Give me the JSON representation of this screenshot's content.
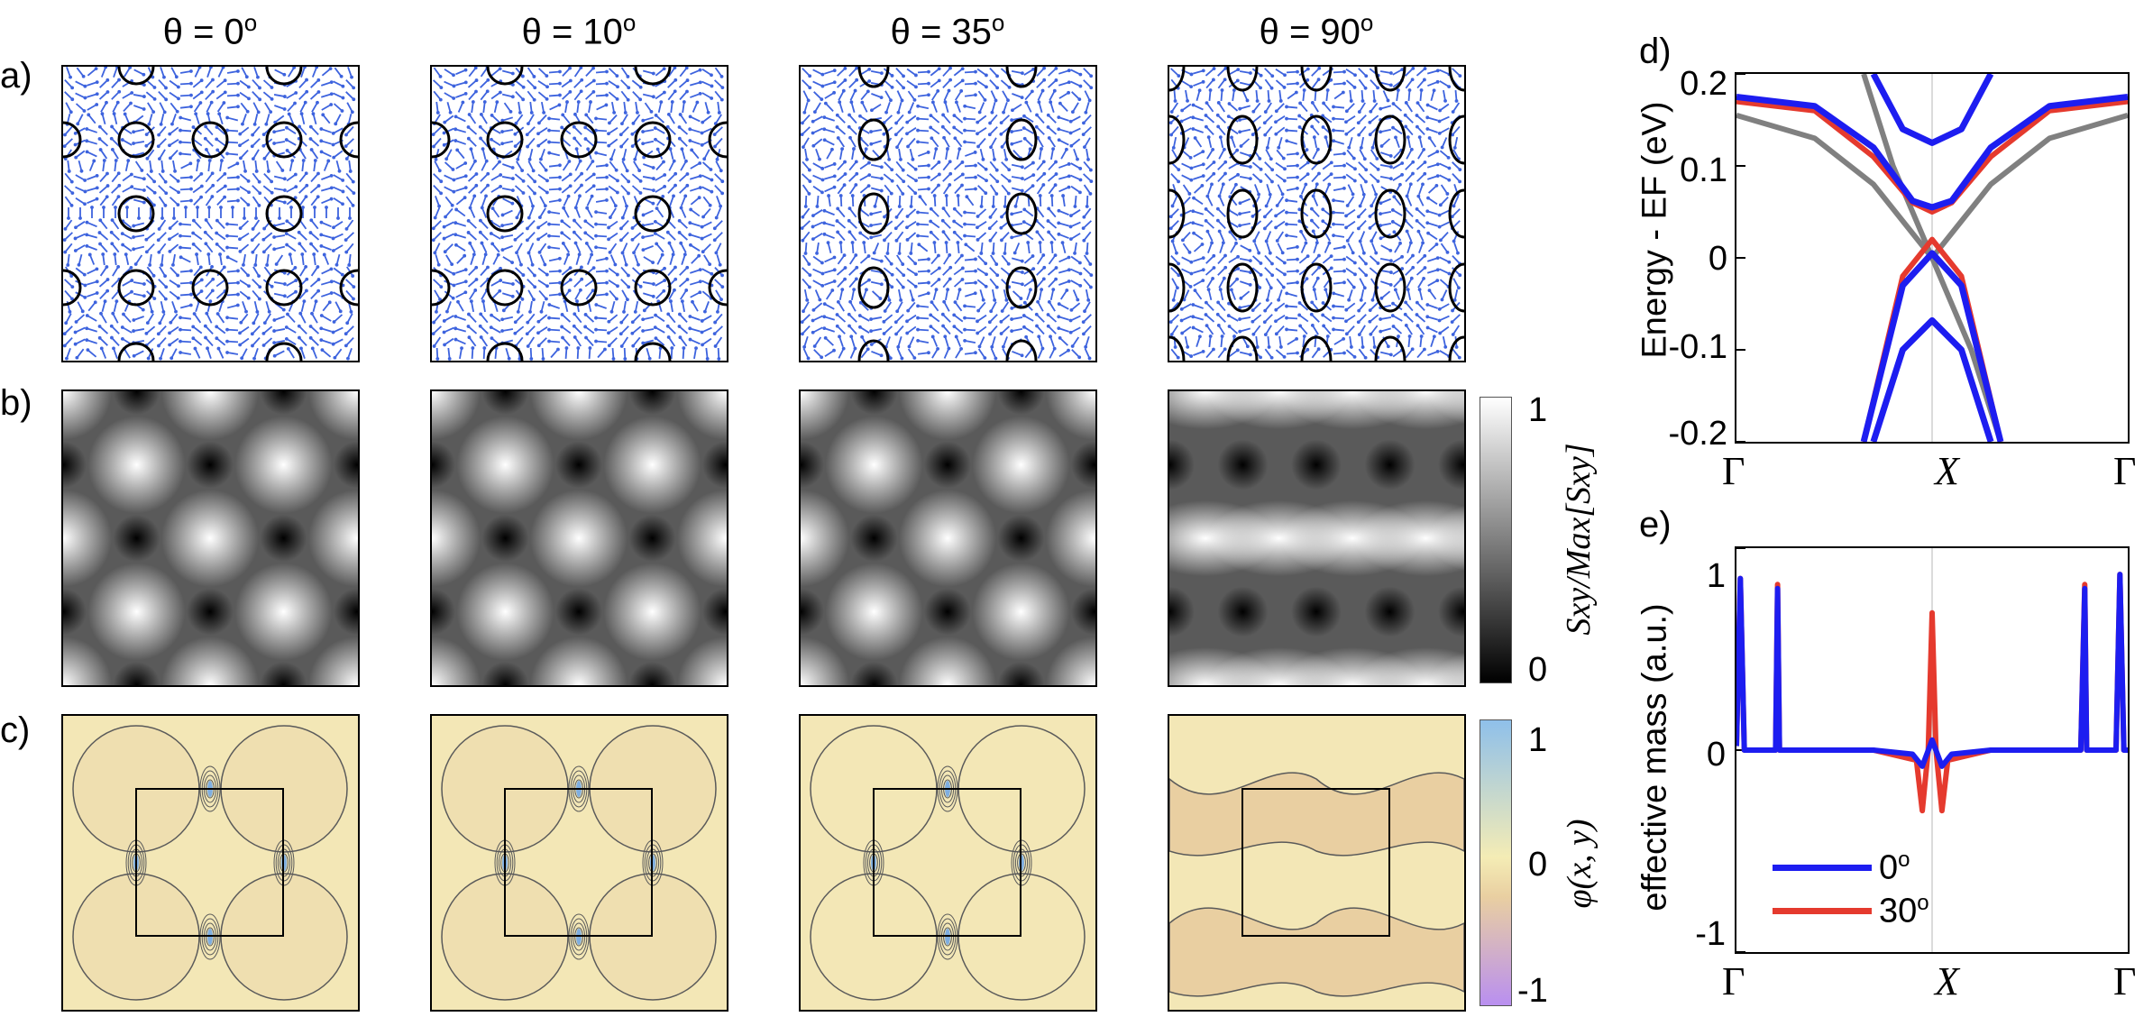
{
  "panel_labels": [
    "a)",
    "b)",
    "c)",
    "d)",
    "e)"
  ],
  "columns": [
    {
      "label": "θ = 0",
      "deg": "o"
    },
    {
      "label": "θ = 10",
      "deg": "o"
    },
    {
      "label": "θ = 35",
      "deg": "o"
    },
    {
      "label": "θ = 90",
      "deg": "o"
    }
  ],
  "colorbar_b": {
    "top": "1",
    "bottom": "0",
    "label": "Sxy/Max[Sxy]",
    "colors": [
      "#000000",
      "#ffffff"
    ]
  },
  "colorbar_c": {
    "ticks": [
      "1",
      "0",
      "-1"
    ],
    "label": "φ(x, y)",
    "colors": [
      "#8fc0ea",
      "#f4ecb5",
      "#e9cfa1",
      "#b98ff0"
    ]
  },
  "colors": {
    "arrow": "#3d63de",
    "contour": "#5a5a5a",
    "band_gray": "#808080",
    "band_red": "#e53a2e",
    "band_blue": "#1d1df0",
    "pattern_bg": "#f3e7b6"
  },
  "chart_data": [
    {
      "type": "line",
      "panel": "d)",
      "ylabel": "Energy - EF (eV)",
      "ylim": [
        -0.2,
        0.2
      ],
      "yticks": [
        "0.2",
        "0.1",
        "0",
        "-0.1",
        "-0.2"
      ],
      "xtick_labels": [
        "Γ",
        "X",
        "Γ"
      ],
      "series": [
        {
          "color": "gray",
          "x": [
            -1,
            -0.6,
            -0.3,
            0,
            0.3,
            0.6,
            1
          ],
          "y": [
            0.155,
            0.13,
            0.08,
            0.0,
            0.08,
            0.13,
            0.155
          ]
        },
        {
          "color": "gray",
          "x": [
            -0.35,
            -0.2,
            0,
            0.2,
            0.35
          ],
          "y": [
            0.2,
            0.1,
            0.0,
            -0.1,
            -0.2
          ]
        },
        {
          "color": "red",
          "x": [
            -1,
            -0.6,
            -0.3,
            -0.1,
            0,
            0.1,
            0.3,
            0.6,
            1
          ],
          "y": [
            0.17,
            0.16,
            0.11,
            0.06,
            0.05,
            0.06,
            0.11,
            0.16,
            0.17
          ]
        },
        {
          "color": "red",
          "x": [
            -0.35,
            -0.15,
            0,
            0.15,
            0.35
          ],
          "y": [
            -0.2,
            -0.02,
            0.02,
            -0.02,
            -0.2
          ]
        },
        {
          "color": "blue",
          "x": [
            -1,
            -0.6,
            -0.3,
            -0.1,
            0,
            0.1,
            0.3,
            0.6,
            1
          ],
          "y": [
            0.175,
            0.165,
            0.12,
            0.062,
            0.055,
            0.062,
            0.12,
            0.165,
            0.175
          ]
        },
        {
          "color": "blue",
          "x": [
            -0.3,
            -0.15,
            0,
            0.15,
            0.3
          ],
          "y": [
            0.2,
            0.14,
            0.125,
            0.14,
            0.2
          ]
        },
        {
          "color": "blue",
          "x": [
            -0.35,
            -0.15,
            0,
            0.15,
            0.35
          ],
          "y": [
            -0.2,
            -0.03,
            0.005,
            -0.03,
            -0.2
          ]
        },
        {
          "color": "blue",
          "x": [
            -0.3,
            -0.15,
            0,
            0.15,
            0.3
          ],
          "y": [
            -0.2,
            -0.1,
            -0.068,
            -0.1,
            -0.2
          ]
        }
      ]
    },
    {
      "type": "line",
      "panel": "e)",
      "ylabel": "effective mass (a.u.)",
      "ylim": [
        -1,
        1
      ],
      "yticks": [
        "1",
        "0",
        "-1"
      ],
      "xtick_labels": [
        "Γ",
        "X",
        "Γ"
      ],
      "legend": {
        "placement": "bottom-left",
        "entries": [
          {
            "name": "0",
            "deg": "o",
            "color": "blue"
          },
          {
            "name": "30",
            "deg": "o",
            "color": "red"
          }
        ]
      },
      "series": [
        {
          "name": "30°",
          "color": "red",
          "x": [
            -1,
            -0.98,
            -0.96,
            -0.94,
            -0.8,
            -0.79,
            -0.78,
            -0.76,
            -0.3,
            -0.08,
            -0.05,
            -0.02,
            0,
            0.02,
            0.05,
            0.08,
            0.3,
            0.76,
            0.78,
            0.79,
            0.8,
            0.94,
            0.96,
            0.98,
            1
          ],
          "y": [
            0.02,
            0.85,
            0.0,
            0.0,
            0.0,
            0.82,
            0.0,
            0.0,
            0.0,
            -0.05,
            -0.3,
            0.0,
            0.68,
            0.0,
            -0.3,
            -0.05,
            0.0,
            0.0,
            0.82,
            0.0,
            0.0,
            0.0,
            0.87,
            0.0,
            0.0
          ]
        },
        {
          "name": "0°",
          "color": "blue",
          "x": [
            -1,
            -0.98,
            -0.96,
            -0.94,
            -0.8,
            -0.79,
            -0.78,
            -0.76,
            -0.3,
            -0.1,
            -0.05,
            0,
            0.05,
            0.1,
            0.3,
            0.76,
            0.78,
            0.79,
            0.8,
            0.94,
            0.96,
            0.98,
            1
          ],
          "y": [
            0.02,
            0.85,
            0.0,
            0.0,
            0.0,
            0.8,
            0.0,
            0.0,
            0.0,
            -0.02,
            -0.08,
            0.05,
            -0.08,
            -0.02,
            0.0,
            0.0,
            0.8,
            0.0,
            0.0,
            0.0,
            0.87,
            0.0,
            0.0
          ]
        }
      ]
    }
  ]
}
